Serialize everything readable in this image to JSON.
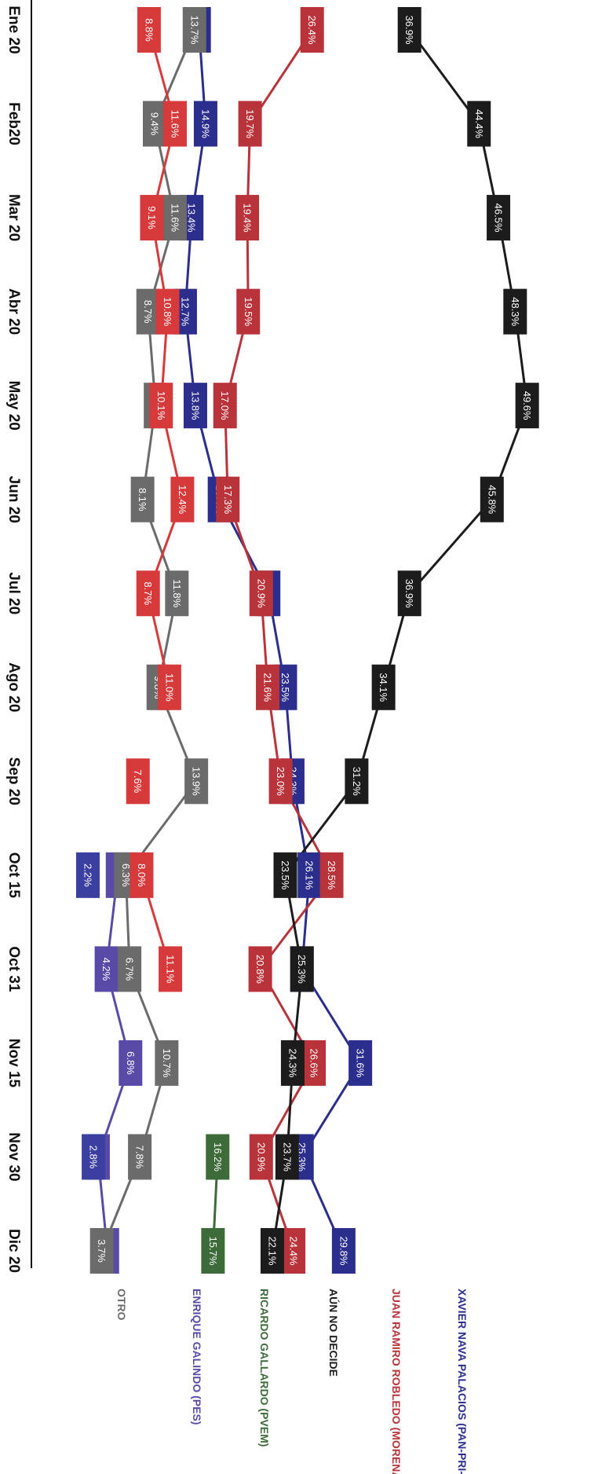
{
  "chart_data": {
    "type": "line",
    "title": "",
    "xlabel": "",
    "ylabel": "",
    "ylim": [
      0,
      52
    ],
    "grid": false,
    "legend_placement": "bottom",
    "orientation": "rotated-90-clockwise",
    "categories": [
      "Ene 20",
      "Feb20",
      "Mar 20",
      "Abr 20",
      "May 20",
      "Jun 20",
      "Jul 20",
      "Ago 20",
      "Sep 20",
      "Oct 15",
      "Oct 31",
      "Nov 15",
      "Nov 30",
      "Dic 20"
    ],
    "series": [
      {
        "name": "XAVIER NAVA PALACIOS (PAN-PRI-PRD)",
        "color": "#2b2e8c",
        "values": [
          14.2,
          14.9,
          13.4,
          12.7,
          13.8,
          16.4,
          21.7,
          23.5,
          24.3,
          26.1,
          25.3,
          31.6,
          25.3,
          29.8
        ],
        "labels": [
          "14.2%",
          "14.9%",
          "13.4%",
          "12.7%",
          "13.8%",
          "16.4%",
          "21.7%",
          "23.5%",
          "24.3%",
          "26.1%",
          "25.3%",
          "31.6%",
          "25.3%",
          "29.8%"
        ]
      },
      {
        "name": "JUAN RAMIRO ROBLEDO (MORENA)",
        "color": "#b8333a",
        "values": [
          26.4,
          19.7,
          19.4,
          19.5,
          17.0,
          17.3,
          20.9,
          21.6,
          23.0,
          28.5,
          20.8,
          26.6,
          20.9,
          24.4
        ],
        "labels": [
          "26.4%",
          "19.7%",
          "19.4%",
          "19.5%",
          "17.0%",
          "17.3%",
          "20.9%",
          "21.6%",
          "23.0%",
          "28.5%",
          "20.8%",
          "26.6%",
          "20.9%",
          "24.4%"
        ]
      },
      {
        "name": "AÚN NO DECIDE",
        "color": "#1c1c1c",
        "values": [
          36.9,
          44.4,
          46.5,
          48.3,
          49.6,
          45.8,
          36.9,
          34.1,
          31.2,
          23.5,
          25.3,
          24.3,
          23.7,
          22.1
        ],
        "labels": [
          "36.9%",
          "44.4%",
          "46.5%",
          "48.3%",
          "49.6%",
          "45.8%",
          "36.9%",
          "34.1%",
          "31.2%",
          "23.5%",
          "25.3%",
          "24.3%",
          "23.7%",
          "22.1%"
        ]
      },
      {
        "name": "RICARDO GALLARDO (PVEM)",
        "color": "#3e6b3a",
        "values": [
          null,
          null,
          null,
          null,
          null,
          null,
          null,
          null,
          null,
          null,
          null,
          null,
          16.2,
          15.7
        ],
        "labels": [
          "",
          "",
          "",
          "",
          "",
          "",
          "",
          "",
          "",
          "",
          "",
          "",
          "16.2%",
          "15.7%"
        ]
      },
      {
        "name": "ENRIQUE GALINDO (PES)",
        "color": "#5a4aa8",
        "values": [
          null,
          null,
          null,
          null,
          null,
          null,
          null,
          null,
          null,
          5.4,
          4.2,
          6.8,
          3.3,
          4.3
        ],
        "labels": [
          "",
          "",
          "",
          "",
          "",
          "",
          "",
          "",
          "",
          "5.4%",
          "4.2%",
          "6.8%",
          "3.3%",
          "4.3%"
        ]
      },
      {
        "name": "OTRO",
        "color": "#6b6b6b",
        "values": [
          13.7,
          9.4,
          11.6,
          8.7,
          9.5,
          8.1,
          11.8,
          9.8,
          13.9,
          6.3,
          6.7,
          10.7,
          7.8,
          3.7
        ],
        "labels": [
          "13.7%",
          "9.4%",
          "11.6%",
          "8.7%",
          "9.5%",
          "8.1%",
          "11.8%",
          "9.8%",
          "13.9%",
          "6.3%",
          "6.7%",
          "10.7%",
          "7.8%",
          "3.7%"
        ]
      },
      {
        "name": "",
        "color": "#d63a3a",
        "values": [
          8.8,
          11.6,
          9.1,
          10.8,
          10.1,
          12.4,
          8.7,
          11.0,
          7.6,
          8.0,
          11.1,
          null,
          null,
          null
        ],
        "labels": [
          "8.8%",
          "11.6%",
          "9.1%",
          "10.8%",
          "10.1%",
          "12.4%",
          "8.7%",
          "11.0%",
          "7.6%",
          "8.0%",
          "11.1%",
          "",
          "",
          " "
        ]
      },
      {
        "name": "",
        "color": "#3b3fa0",
        "values": [
          null,
          null,
          null,
          null,
          null,
          null,
          null,
          null,
          null,
          2.2,
          null,
          null,
          2.8,
          null
        ],
        "labels": [
          "",
          "",
          "",
          "",
          "",
          "",
          "",
          "",
          "",
          "2.2%",
          "",
          "",
          "2.8%",
          ""
        ]
      }
    ],
    "unlinked_points": [
      {
        "series_index": 6,
        "category_index": 8
      }
    ]
  }
}
